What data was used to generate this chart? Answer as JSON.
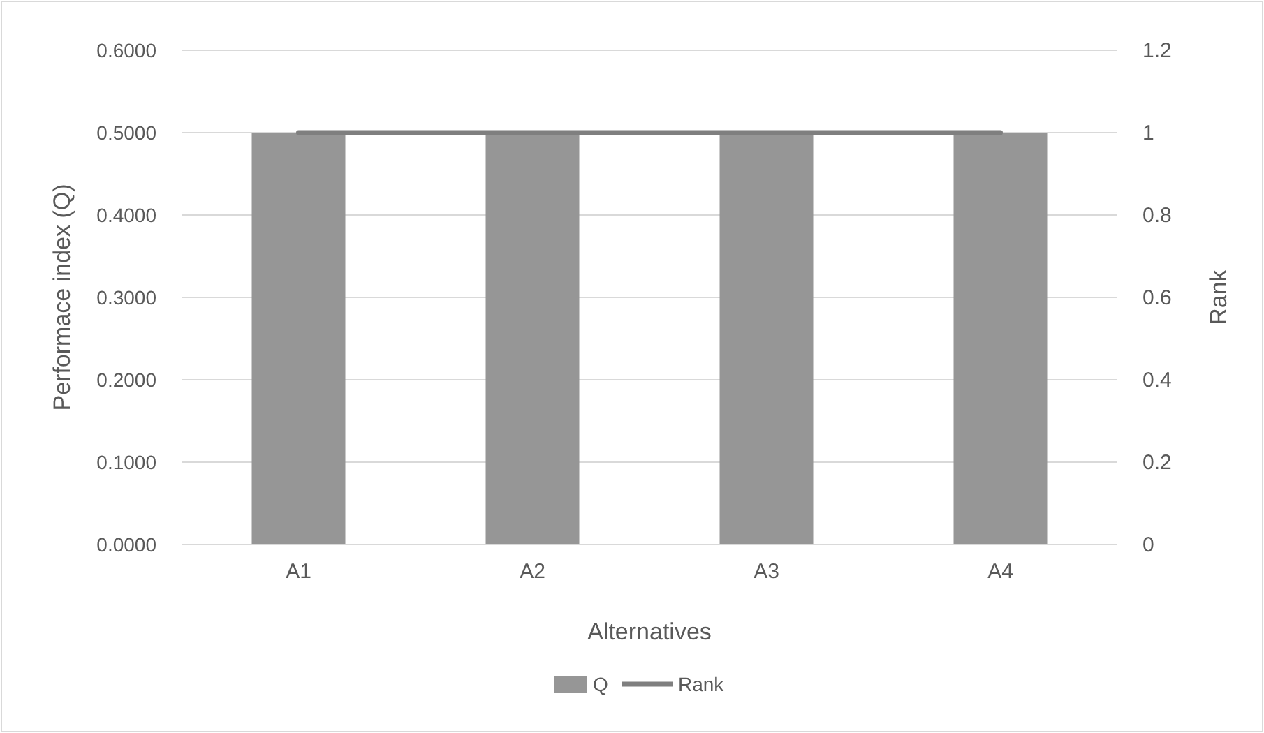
{
  "chart_data": {
    "type": "bar",
    "xlabel": "Alternatives",
    "ylabel": "Performace index (Q)",
    "y2label": "Rank",
    "categories": [
      "A1",
      "A2",
      "A3",
      "A4"
    ],
    "series": [
      {
        "name": "Q",
        "color": "#969696",
        "values": [
          0.5,
          0.5,
          0.5,
          0.5
        ]
      },
      {
        "name": "Rank",
        "type": "line",
        "axis": "y2",
        "color": "#7f7f7f",
        "values": [
          1,
          1,
          1,
          1
        ]
      }
    ],
    "ylim": [
      0,
      0.6
    ],
    "yticks": [
      {
        "value": 0,
        "label": "0.0000"
      },
      {
        "value": 0.1,
        "label": "0.1000"
      },
      {
        "value": 0.2,
        "label": "0.2000"
      },
      {
        "value": 0.3,
        "label": "0.3000"
      },
      {
        "value": 0.4,
        "label": "0.4000"
      },
      {
        "value": 0.5,
        "label": "0.5000"
      },
      {
        "value": 0.6,
        "label": "0.6000"
      }
    ],
    "y2lim": [
      0,
      1.2
    ],
    "y2ticks": [
      0,
      0.2,
      0.4,
      0.6,
      0.8,
      1,
      1.2
    ],
    "grid": "y",
    "legend": "bottom",
    "marker": "none"
  }
}
